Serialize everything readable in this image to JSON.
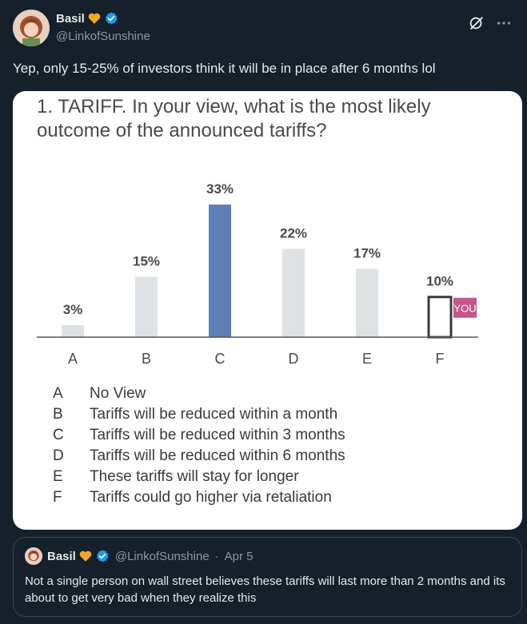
{
  "post": {
    "display_name": "Basil",
    "handle": "@LinkofSunshine",
    "text": "Yep, only 15-25% of investors think it will be in place after 6 months lol",
    "icons": {
      "heart": "orange-heart-icon",
      "verified": "verified-badge-icon",
      "grok": "grok-icon",
      "more": "more-options-icon"
    },
    "colors": {
      "heart": "#f5a623",
      "verified": "#1d9bf0"
    }
  },
  "chart_data": {
    "type": "bar",
    "title": "1. TARIFF. In your view, what is the most likely outcome of the announced tariffs?",
    "title_lines": [
      "1. TARIFF. In your view, what is the most likely",
      "outcome of the announced tariffs?"
    ],
    "categories": [
      "A",
      "B",
      "C",
      "D",
      "E",
      "F"
    ],
    "values": [
      3,
      15,
      33,
      22,
      17,
      10
    ],
    "value_labels": [
      "3%",
      "15%",
      "33%",
      "22%",
      "17%",
      "10%"
    ],
    "highlight_category": "C",
    "outlined_category": "F",
    "marker_label": "YOU",
    "ylim": [
      0,
      35
    ],
    "colors": {
      "bar": "#dfe2e5",
      "highlight": "#5b7fb6",
      "marker": "#c5558c",
      "outline": "#3a3a3a"
    },
    "legend": [
      {
        "key": "A",
        "text": "No View"
      },
      {
        "key": "B",
        "text": "Tariffs will be reduced within a month"
      },
      {
        "key": "C",
        "text": "Tariffs will be reduced within 3 months"
      },
      {
        "key": "D",
        "text": "Tariffs will be reduced within 6 months"
      },
      {
        "key": "E",
        "text": "These tariffs will stay for longer"
      },
      {
        "key": "F",
        "text": "Tariffs could go higher via retaliation"
      }
    ]
  },
  "quote": {
    "display_name": "Basil",
    "handle": "@LinkofSunshine",
    "separator": "·",
    "date": "Apr 5",
    "text": "Not a single person on wall street believes these tariffs will last more than 2 months and its about to get very bad when they realize this"
  }
}
